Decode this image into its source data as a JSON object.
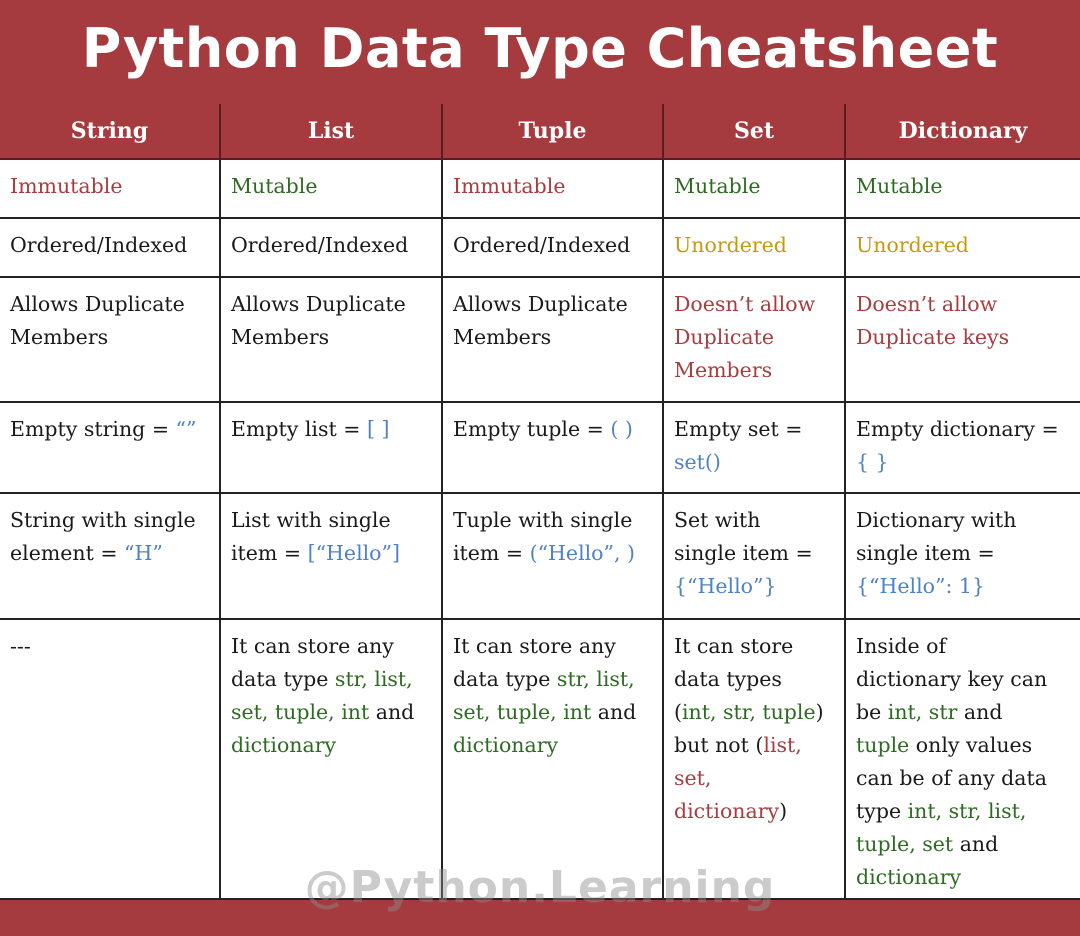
{
  "title": "Python Data Type Cheatsheet",
  "watermark": "@Python.Learning",
  "colors": {
    "header_bg": "#a53b3e",
    "red": "#a83c3e",
    "green": "#2e6b22",
    "gold": "#c49a10",
    "blue": "#4d82c6"
  },
  "columns": [
    "String",
    "List",
    "Tuple",
    "Set",
    "Dictionary"
  ],
  "mutability": [
    {
      "text": "Immutable",
      "color": "red"
    },
    {
      "text": "Mutable",
      "color": "green"
    },
    {
      "text": "Immutable",
      "color": "red"
    },
    {
      "text": "Mutable",
      "color": "green"
    },
    {
      "text": "Mutable",
      "color": "green"
    }
  ],
  "ordering": [
    {
      "text": "Ordered/Indexed",
      "color": ""
    },
    {
      "text": "Ordered/Indexed",
      "color": ""
    },
    {
      "text": "Ordered/Indexed",
      "color": ""
    },
    {
      "text": "Unordered",
      "color": "gold"
    },
    {
      "text": "Unordered",
      "color": "gold"
    }
  ],
  "duplicates": [
    {
      "line1": "Allows Duplicate",
      "line2": "Members",
      "color": ""
    },
    {
      "line1": "Allows Duplicate",
      "line2": "Members",
      "color": ""
    },
    {
      "line1": "Allows Duplicate",
      "line2": "Members",
      "color": ""
    },
    {
      "line1": "Doesn’t allow",
      "line2": "Duplicate",
      "line3": "Members",
      "color": "red"
    },
    {
      "line1": "Doesn’t allow",
      "line2": "Duplicate keys",
      "color": "red"
    }
  ],
  "empty": [
    {
      "label": "Empty string = ",
      "code": "“”"
    },
    {
      "label": "Empty list = ",
      "code": "[ ]"
    },
    {
      "label": "Empty tuple = ",
      "code": "( )"
    },
    {
      "label": "Empty set =",
      "code": "set()"
    },
    {
      "label": "Empty dictionary =",
      "code": "{ }"
    }
  ],
  "single": [
    {
      "line1": "String with single",
      "line2": "element = ",
      "code": "“H”"
    },
    {
      "line1": "List with single",
      "line2": "item = ",
      "code": "[“Hello”]"
    },
    {
      "line1": "Tuple with single",
      "line2": "item = ",
      "code": "(“Hello”, )"
    },
    {
      "line1": "Set with",
      "line2": "single item =",
      "code": "{“Hello”}"
    },
    {
      "line1": "Dictionary with",
      "line2": "single item =",
      "code": "{“Hello”: 1}"
    }
  ],
  "storage": {
    "string": "---",
    "list": {
      "l1": "It can store any",
      "l2a": "data type ",
      "l2b": "str, list,",
      "l3a": "set, tuple, int",
      "l3b": " and",
      "l4": "dictionary"
    },
    "tuple": {
      "l1": "It can store any",
      "l2a": "data type ",
      "l2b": "str, list,",
      "l3a": "set, tuple, int",
      "l3b": " and",
      "l4": "dictionary"
    },
    "set": {
      "l1": "It can store",
      "l2": "data types",
      "l3a": "(",
      "l3b": "int, str, tuple",
      "l3c": ")",
      "l4a": "but not (",
      "l4b": "list,",
      "l5": "set,",
      "l6a": "dictionary",
      "l6b": ")"
    },
    "dictionary": {
      "l1": "Inside of",
      "l2": "dictionary key can",
      "l3a": "be ",
      "l3b": "int, str",
      "l3c": " and",
      "l4a": "tuple",
      "l4b": " only values",
      "l5": "can be of any data",
      "l6a": "type ",
      "l6b": "int, str, list,",
      "l7a": "tuple, set",
      "l7b": " and",
      "l8": "dictionary"
    }
  }
}
